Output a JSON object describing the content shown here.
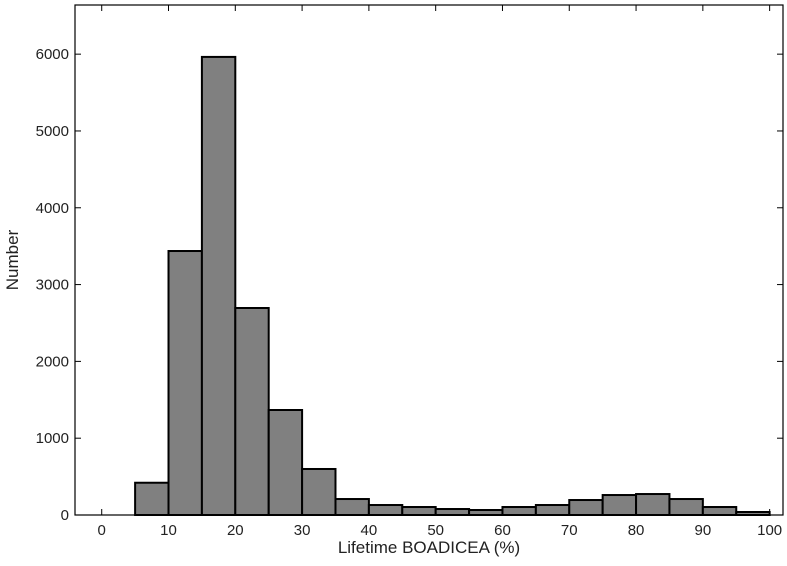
{
  "chart_data": {
    "type": "histogram",
    "x_label": "Lifetime BOADICEA (%)",
    "y_label": "Number",
    "bins": [
      0,
      5,
      10,
      15,
      20,
      25,
      30,
      35,
      40,
      45,
      50,
      55,
      60,
      65,
      70,
      75,
      80,
      85,
      90,
      95,
      100
    ],
    "values": [
      0,
      420,
      3437,
      5964,
      2695,
      1367,
      599,
      208,
      130,
      104,
      78,
      65,
      104,
      130,
      195,
      260,
      273,
      208,
      104,
      39
    ],
    "color": "#808080",
    "xlim": [
      -4,
      102
    ],
    "xticks": [
      0,
      10,
      20,
      30,
      40,
      50,
      60,
      70,
      80,
      90,
      100
    ],
    "ylim": [
      0,
      6640
    ],
    "yticks": [
      0,
      1000,
      2000,
      3000,
      4000,
      5000,
      6000
    ],
    "grid": false
  }
}
